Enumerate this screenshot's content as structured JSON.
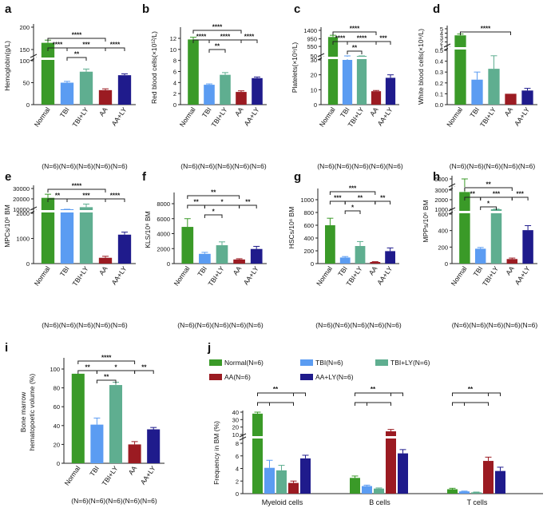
{
  "colors": {
    "normal": "#3a9a28",
    "tbi": "#5b9cf2",
    "tbily": "#5fae90",
    "aa": "#9b1b22",
    "aaly": "#1f1b8c"
  },
  "n_label": "(N=6)(N=6)(N=6)(N=6)(N=6)",
  "chart_data": [
    {
      "type": "bar",
      "panel": "a",
      "ylabel": "Hemoglobin(g/L)",
      "categories": [
        "Normal",
        "TBI",
        "TBI+LY",
        "AA",
        "AA+LY"
      ],
      "values": [
        165,
        50,
        75,
        33,
        67
      ],
      "errors": [
        6,
        3,
        6,
        3,
        3
      ],
      "lower_ticks": [
        "0",
        "50",
        "100",
        "150"
      ],
      "upper_ticks": [
        "150",
        "200"
      ],
      "sig": [
        {
          "text": "****",
          "from": 0,
          "to": 3
        },
        {
          "text": "****",
          "from": 0,
          "to": 1
        },
        {
          "text": "***",
          "from": 1,
          "to": 3
        },
        {
          "text": "****",
          "from": 3,
          "to": 4
        },
        {
          "text": "**",
          "from": 1,
          "to": 2
        }
      ]
    },
    {
      "type": "bar",
      "panel": "b",
      "ylabel": "Red blood cells(×10¹²/L)",
      "categories": [
        "Normal",
        "TBI",
        "TBI+LY",
        "AA",
        "AA+LY"
      ],
      "values": [
        11.8,
        3.6,
        5.4,
        2.3,
        4.8
      ],
      "errors": [
        0.4,
        0.15,
        0.4,
        0.2,
        0.2
      ],
      "ticks": [
        "0",
        "2",
        "4",
        "6",
        "8",
        "10",
        "12"
      ],
      "sig": [
        {
          "text": "****",
          "from": 0,
          "to": 3
        },
        {
          "text": "****",
          "from": 0,
          "to": 1
        },
        {
          "text": "****",
          "from": 1,
          "to": 3
        },
        {
          "text": "****",
          "from": 3,
          "to": 4
        },
        {
          "text": "**",
          "from": 1,
          "to": 2
        }
      ]
    },
    {
      "type": "bar",
      "panel": "c",
      "ylabel": "Platelets(×10⁹/L)",
      "categories": [
        "Normal",
        "TBI",
        "TBI+LY",
        "AA",
        "AA+LY"
      ],
      "values": [
        1050,
        30,
        40,
        9,
        18
      ],
      "errors": [
        90,
        1,
        3,
        0.5,
        2
      ],
      "lower_ticks": [
        "0",
        "10",
        "20",
        "30"
      ],
      "upper_ticks": [
        "50",
        "550",
        "950",
        "1400"
      ],
      "sig": [
        {
          "text": "****",
          "from": 0,
          "to": 3
        },
        {
          "text": "****",
          "from": 0,
          "to": 1
        },
        {
          "text": "****",
          "from": 1,
          "to": 3
        },
        {
          "text": "***",
          "from": 3,
          "to": 4
        },
        {
          "text": "**",
          "from": 1,
          "to": 2
        }
      ]
    },
    {
      "type": "bar",
      "panel": "d",
      "ylabel": "White blood cells(×10⁹/L)",
      "categories": [
        "Normal",
        "TBI",
        "TBI+LY",
        "AA",
        "AA+LY"
      ],
      "values": [
        3.5,
        0.23,
        0.33,
        0.1,
        0.13
      ],
      "errors": [
        0.3,
        0.07,
        0.12,
        0.0,
        0.02
      ],
      "lower_ticks": [
        "0.0",
        "0.1",
        "0.2",
        "0.3",
        "0.4",
        "0.5"
      ],
      "upper_ticks": [
        "1",
        "2",
        "3",
        "4",
        "5"
      ],
      "sig": [
        {
          "text": "****",
          "from": 0,
          "to": 3
        }
      ]
    },
    {
      "type": "bar",
      "panel": "e",
      "ylabel": "MPCs/10⁶ BM",
      "categories": [
        "Normal",
        "TBI",
        "TBI+LY",
        "AA",
        "AA+LY"
      ],
      "values": [
        21000,
        7000,
        12000,
        230,
        1150
      ],
      "errors": [
        3500,
        1000,
        3000,
        60,
        100
      ],
      "lower_ticks": [
        "0",
        "1000",
        "2000"
      ],
      "upper_ticks": [
        "10000",
        "20000",
        "30000"
      ],
      "sig": [
        {
          "text": "****",
          "from": 0,
          "to": 3
        },
        {
          "text": "**",
          "from": 0,
          "to": 1
        },
        {
          "text": "***",
          "from": 1,
          "to": 3
        },
        {
          "text": "****",
          "from": 3,
          "to": 4
        }
      ]
    },
    {
      "type": "bar",
      "panel": "f",
      "ylabel": "KLS/10⁶ BM",
      "categories": [
        "Normal",
        "TBI",
        "TBI+LY",
        "AA",
        "AA+LY"
      ],
      "values": [
        4900,
        1300,
        2450,
        550,
        1950
      ],
      "errors": [
        1100,
        200,
        450,
        100,
        350
      ],
      "ticks": [
        "0",
        "2000",
        "4000",
        "6000",
        "8000"
      ],
      "sig": [
        {
          "text": "**",
          "from": 0,
          "to": 3
        },
        {
          "text": "**",
          "from": 0,
          "to": 1
        },
        {
          "text": "*",
          "from": 1,
          "to": 3
        },
        {
          "text": "**",
          "from": 3,
          "to": 4
        },
        {
          "text": "*",
          "from": 1,
          "to": 2
        }
      ]
    },
    {
      "type": "bar",
      "panel": "g",
      "ylabel": "HSCs/10⁶ BM",
      "categories": [
        "Normal",
        "TBI",
        "TBI+LY",
        "AA",
        "AA+LY"
      ],
      "values": [
        600,
        95,
        275,
        25,
        195
      ],
      "errors": [
        110,
        15,
        70,
        5,
        50
      ],
      "ticks": [
        "0",
        "200",
        "400",
        "600",
        "800",
        "1000"
      ],
      "sig": [
        {
          "text": "***",
          "from": 0,
          "to": 3
        },
        {
          "text": "***",
          "from": 0,
          "to": 1
        },
        {
          "text": "**",
          "from": 1,
          "to": 3
        },
        {
          "text": "**",
          "from": 3,
          "to": 4
        },
        {
          "text": "*",
          "from": 1,
          "to": 2
        }
      ]
    },
    {
      "type": "bar",
      "panel": "h",
      "ylabel": "MPPs/10⁶ BM",
      "categories": [
        "Normal",
        "TBI",
        "TBI+LY",
        "AA",
        "AA+LY"
      ],
      "values": [
        2800,
        180,
        900,
        55,
        405
      ],
      "errors": [
        700,
        15,
        120,
        12,
        55
      ],
      "lower_ticks": [
        "0",
        "200",
        "400",
        "600"
      ],
      "upper_ticks": [
        "1000",
        "2000",
        "3000",
        "5000"
      ],
      "sig": [
        {
          "text": "**",
          "from": 0,
          "to": 3
        },
        {
          "text": "**",
          "from": 0,
          "to": 1
        },
        {
          "text": "***",
          "from": 1,
          "to": 3
        },
        {
          "text": "***",
          "from": 3,
          "to": 4
        },
        {
          "text": "*",
          "from": 1,
          "to": 2
        }
      ]
    },
    {
      "type": "bar",
      "panel": "i",
      "ylabel": "Bone marrow hematopoietic volume (%)",
      "categories": [
        "Normal",
        "TBI",
        "TBI+LY",
        "AA",
        "AA+LY"
      ],
      "values": [
        95,
        41,
        83,
        20,
        36
      ],
      "errors": [
        0,
        7,
        3,
        3,
        2
      ],
      "ticks": [
        "0",
        "20",
        "40",
        "60",
        "80",
        "100"
      ],
      "sig": [
        {
          "text": "****",
          "from": 0,
          "to": 3
        },
        {
          "text": "**",
          "from": 0,
          "to": 1
        },
        {
          "text": "*",
          "from": 1,
          "to": 3
        },
        {
          "text": "**",
          "from": 3,
          "to": 4
        },
        {
          "text": "**",
          "from": 1,
          "to": 2
        }
      ]
    },
    {
      "type": "bar",
      "panel": "j",
      "ylabel": "Frequency in BM (%)",
      "categories": [
        "Myeloid cells",
        "B cells",
        "T cells"
      ],
      "series": [
        {
          "name": "Normal(N=6)",
          "values": [
            38,
            2.5,
            0.7
          ],
          "errors": [
            2,
            0.3,
            0.15
          ]
        },
        {
          "name": "TBI(N=6)",
          "values": [
            4.1,
            1.2,
            0.35
          ],
          "errors": [
            1.2,
            0.15,
            0.05
          ]
        },
        {
          "name": "TBI+LY(N=6)",
          "values": [
            3.7,
            0.8,
            0.2
          ],
          "errors": [
            0.8,
            0.1,
            0.05
          ]
        },
        {
          "name": "AA(N=6)",
          "values": [
            1.7,
            10.5,
            5.2
          ],
          "errors": [
            0.3,
            0.3,
            0.6
          ]
        },
        {
          "name": "AA+LY(N=6)",
          "values": [
            5.6,
            6.4,
            3.6
          ],
          "errors": [
            0.5,
            0.6,
            0.6
          ]
        }
      ],
      "lower_ticks": [
        "0",
        "2",
        "4",
        "6",
        "8"
      ],
      "upper_ticks": [
        "10",
        "20",
        "30",
        "40"
      ],
      "sig": [
        {
          "text": "**",
          "group": 0
        },
        {
          "text": "**",
          "group": 1
        },
        {
          "text": "**",
          "group": 2
        }
      ]
    }
  ]
}
